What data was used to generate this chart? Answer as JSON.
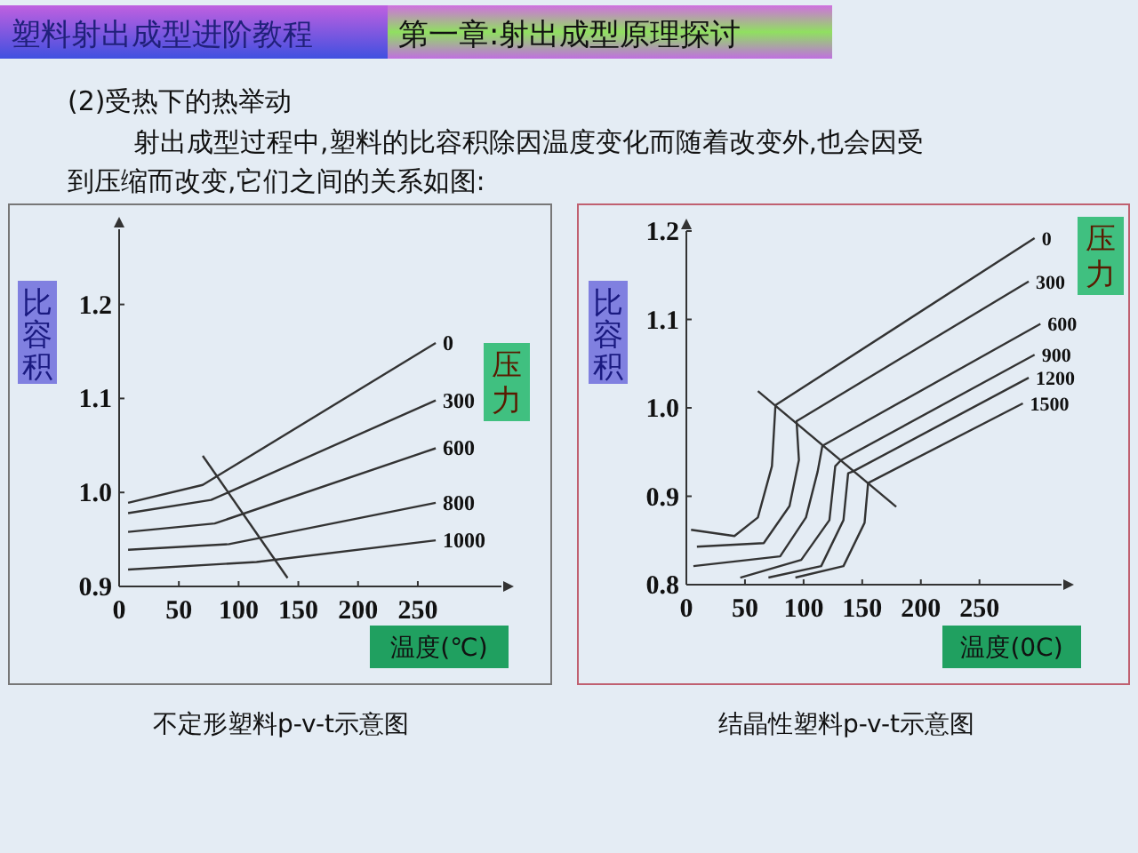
{
  "chart_data": [
    {
      "type": "line",
      "title": "塑料射出成型进阶教程",
      "subtitle": "第一章:射出成型原理探讨",
      "ylabel": "比容积",
      "xlabel": "温度(℃)",
      "legend_title": "压力",
      "xlim": [
        0,
        320
      ],
      "ylim": [
        0.9,
        1.28
      ],
      "xticks": [
        0,
        50,
        100,
        150,
        200,
        250
      ],
      "yticks": [
        0.9,
        {
          "value": 1,
          "label": "1.0"
        },
        1.1,
        1.2
      ],
      "grid": false,
      "legend": false,
      "marker": "none",
      "line_style": "solid",
      "annotations": [
        "(2)受热下的热举动",
        "射出成型过程中,塑料的比容积除因温度变化而随着改变外,也会因受到压缩而改变,它们之间的关系如图:",
        "不定形塑料p-v-t示意图"
      ],
      "series": [
        {
          "name": "0",
          "color": "#333333",
          "x": [
            7.5,
            70,
            265
          ],
          "values": [
            0.989,
            1.008,
            1.159
          ]
        },
        {
          "name": "300",
          "color": "#333333",
          "x": [
            7.5,
            77,
            265
          ],
          "values": [
            0.978,
            0.992,
            1.098
          ]
        },
        {
          "name": "600",
          "color": "#333333",
          "x": [
            7.5,
            80,
            265
          ],
          "values": [
            0.958,
            0.967,
            1.047
          ]
        },
        {
          "name": "800",
          "color": "#333333",
          "x": [
            7.5,
            92,
            265
          ],
          "values": [
            0.939,
            0.945,
            0.989
          ]
        },
        {
          "name": "1000",
          "color": "#333333",
          "x": [
            7.5,
            115,
            265
          ],
          "values": [
            0.918,
            0.926,
            0.949
          ]
        },
        {
          "color": "#333333",
          "x": [
            70,
            141
          ],
          "values": [
            1.039,
            0.909
          ]
        }
      ]
    },
    {
      "type": "line",
      "ylabel": "比容积",
      "xlabel": "温度(0C)",
      "legend_title": "压力",
      "xlim": [
        0,
        320
      ],
      "ylim": [
        0.8,
        1.2
      ],
      "xticks": [
        0,
        50,
        100,
        150,
        200,
        250
      ],
      "yticks": [
        0.8,
        0.9,
        {
          "value": 1,
          "label": "1.0"
        },
        1.1,
        1.2
      ],
      "grid": false,
      "legend": false,
      "marker": "none",
      "line_style": "solid",
      "annotations": [
        "结晶性塑料p-v-t示意图"
      ],
      "series": [
        {
          "name": "0",
          "color": "#333333",
          "x": [
            4,
            41,
            61,
            73,
            76,
            297
          ],
          "values": [
            0.862,
            0.855,
            0.876,
            0.934,
            1.003,
            1.192
          ]
        },
        {
          "name": "300",
          "color": "#333333",
          "x": [
            9,
            66,
            88,
            96,
            94,
            292
          ],
          "values": [
            0.843,
            0.847,
            0.889,
            0.941,
            0.985,
            1.143
          ]
        },
        {
          "name": "600",
          "color": "#333333",
          "x": [
            6,
            80,
            102,
            112,
            116,
            302
          ],
          "values": [
            0.821,
            0.832,
            0.876,
            0.928,
            0.957,
            1.095
          ]
        },
        {
          "name": "900",
          "color": "#333333",
          "x": [
            46,
            98,
            122,
            127,
            132,
            297
          ],
          "values": [
            0.808,
            0.828,
            0.873,
            0.934,
            0.941,
            1.06
          ]
        },
        {
          "name": "1200",
          "color": "#333333",
          "x": [
            70,
            115,
            134,
            138,
            142,
            292
          ],
          "values": [
            0.808,
            0.821,
            0.873,
            0.926,
            0.928,
            1.034
          ]
        },
        {
          "name": "1500",
          "color": "#333333",
          "x": [
            93,
            134,
            152,
            155,
            287
          ],
          "values": [
            0.808,
            0.821,
            0.87,
            0.915,
            1.005
          ]
        },
        {
          "color": "#333333",
          "x": [
            61,
            179
          ],
          "values": [
            1.019,
            0.888
          ]
        }
      ]
    }
  ]
}
